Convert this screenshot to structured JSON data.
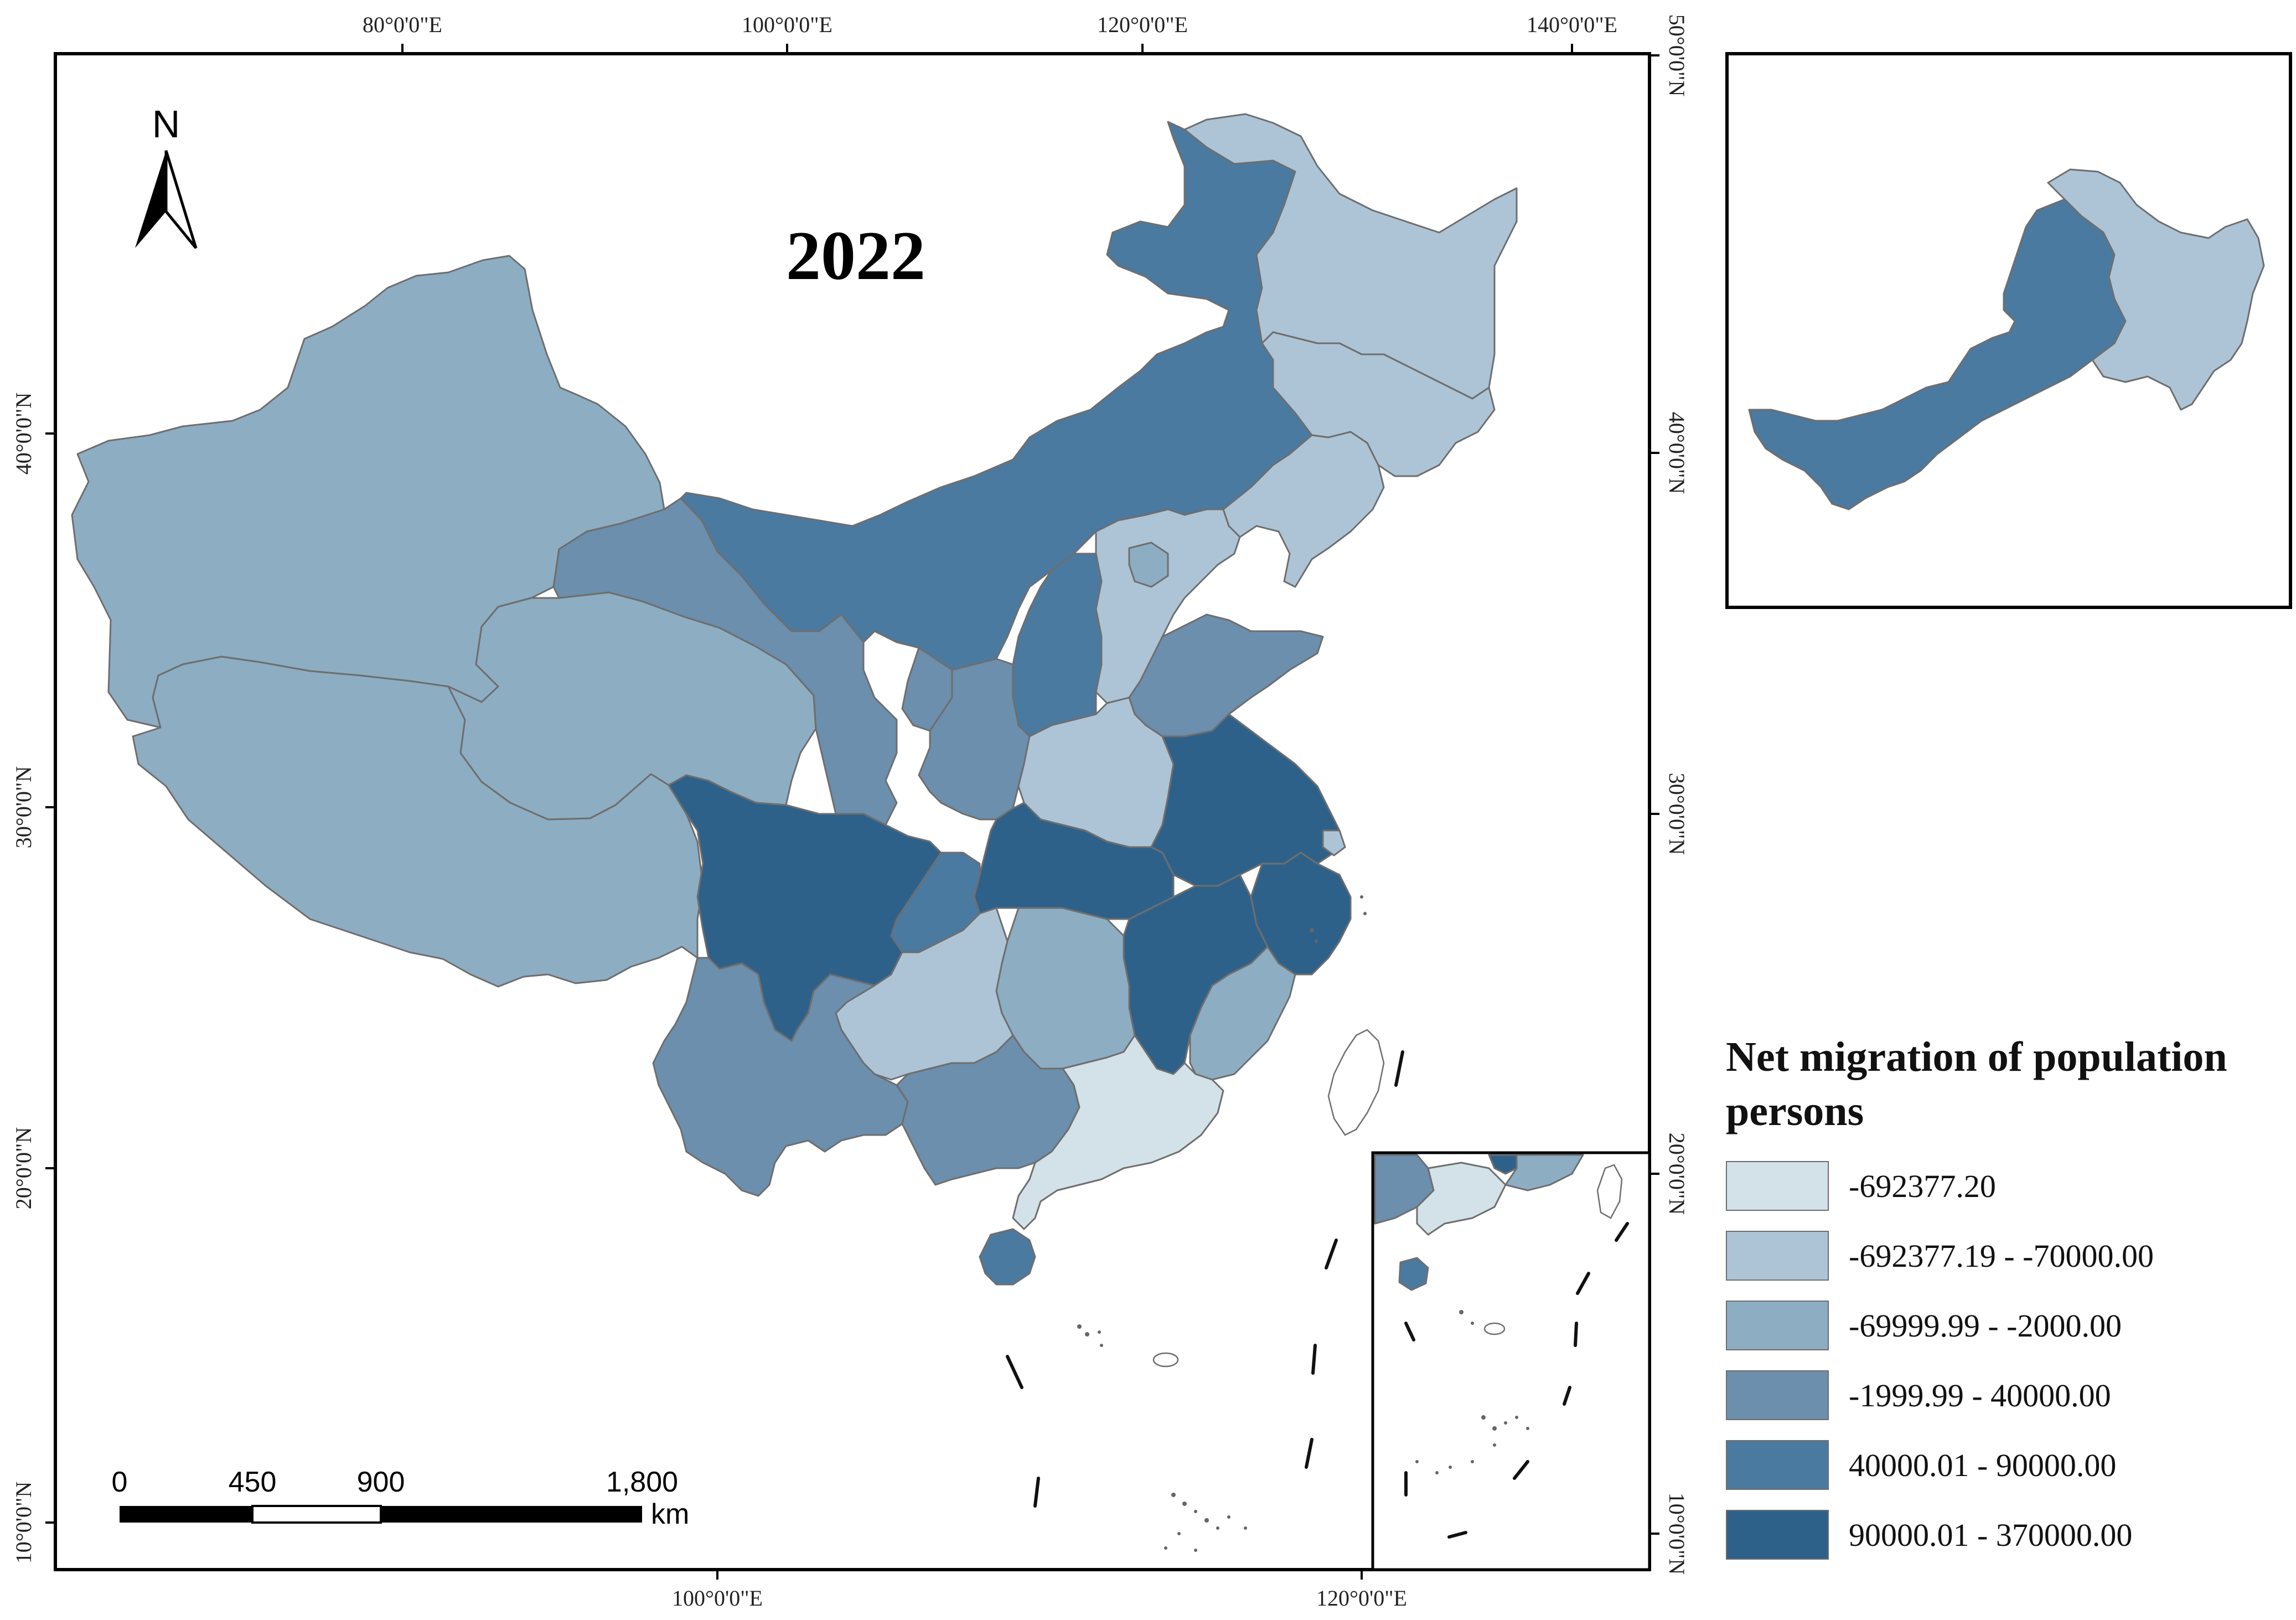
{
  "map": {
    "title": "2022",
    "north_label": "N",
    "longitude_labels_top": [
      "80°0'0\"E",
      "100°0'0\"E",
      "120°0'0\"E",
      "140°0'0\"E"
    ],
    "longitude_labels_bottom": [
      "100°0'0\"E",
      "120°0'0\"E"
    ],
    "latitude_labels_left": [
      "40°0'0\"N",
      "30°0'0\"N",
      "20°0'0\"N",
      "10°0'0\"N"
    ],
    "latitude_labels_right": [
      "50°0'0\"N",
      "40°0'0\"N",
      "30°0'0\"N",
      "20°0'0\"N",
      "10°0'0\"N"
    ],
    "scale_bar": {
      "ticks": [
        "0",
        "450",
        "900",
        "1,800"
      ],
      "unit": "km"
    }
  },
  "legend": {
    "title": "Net migration of population persons",
    "classes": [
      {
        "label": "-692377.20",
        "color": "#d3e1e8"
      },
      {
        "label": "-692377.19 - -70000.00",
        "color": "#adc4d6"
      },
      {
        "label": "-69999.99 - -2000.00",
        "color": "#8dadc3"
      },
      {
        "label": "-1999.99 - 40000.00",
        "color": "#6b8fad"
      },
      {
        "label": "40000.01 - 90000.00",
        "color": "#4b7aa1"
      },
      {
        "label": "90000.01 - 370000.00",
        "color": "#2e6189"
      }
    ]
  }
}
